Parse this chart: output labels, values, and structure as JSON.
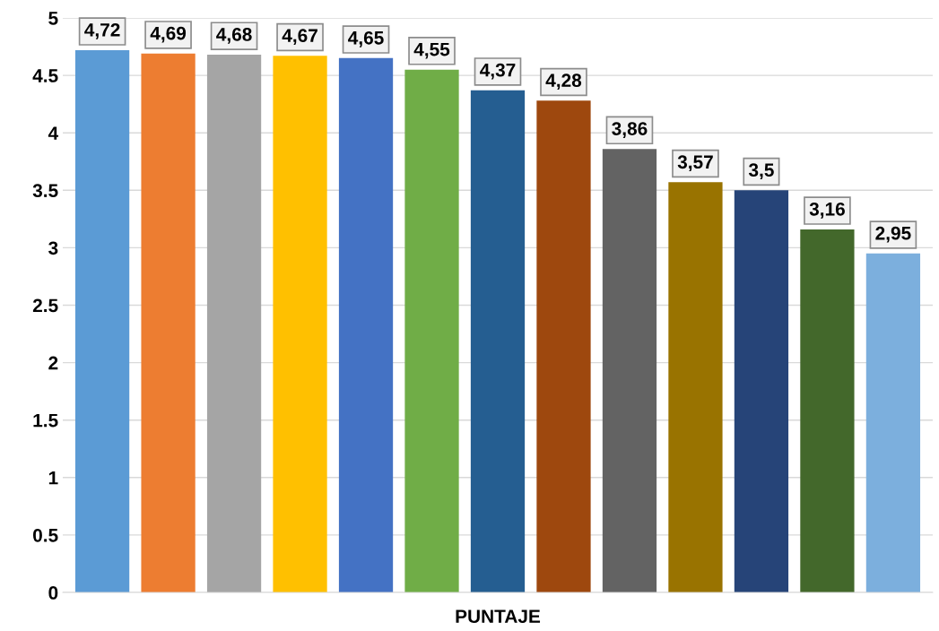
{
  "chart_data": {
    "type": "bar",
    "xlabel": "PUNTAJE",
    "categories": [
      null,
      null,
      null,
      null,
      null,
      null,
      null,
      null,
      null,
      null,
      null,
      null,
      null
    ],
    "values": [
      4.72,
      4.69,
      4.68,
      4.67,
      4.65,
      4.55,
      4.37,
      4.28,
      3.86,
      3.57,
      3.5,
      3.16,
      2.95
    ],
    "value_labels": [
      "4,72",
      "4,69",
      "4,68",
      "4,67",
      "4,65",
      "4,55",
      "4,37",
      "4,28",
      "3,86",
      "3,57",
      "3,5",
      "3,16",
      "2,95"
    ],
    "colors": [
      "#5b9bd5",
      "#ed7d31",
      "#a5a5a5",
      "#ffc000",
      "#4472c4",
      "#70ad47",
      "#255e91",
      "#9e480e",
      "#636363",
      "#997300",
      "#264478",
      "#43682b",
      "#7cafdd"
    ],
    "ylim": [
      0,
      5
    ],
    "yticks": [
      0,
      0.5,
      1,
      1.5,
      2,
      2.5,
      3,
      3.5,
      4,
      4.5,
      5
    ],
    "grid": "y",
    "legend": false
  }
}
